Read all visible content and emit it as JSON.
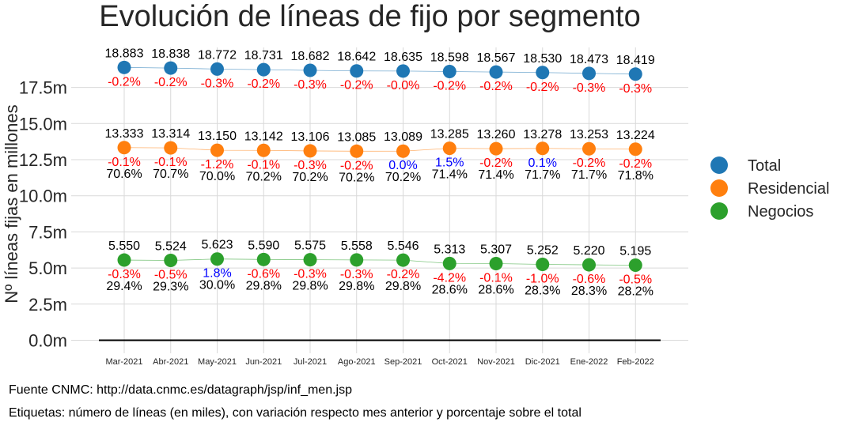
{
  "title": "Evolución de líneas de fijo por segmento",
  "footer": {
    "source": "Fuente CNMC: http://data.cnmc.es/datagraph/jsp/inf_men.jsp",
    "note": "Etiquetas: número de líneas (en miles), con variación respecto mes anterior y porcentaje sobre el total"
  },
  "colors": {
    "up": "#0000ff",
    "down": "#ff0000",
    "text": "#000000",
    "grid": "#d9d9d9"
  },
  "chart_data": {
    "type": "scatter",
    "title": "Evolución de líneas de fijo por segmento",
    "ylabel": "Nº líneas fijas en millones",
    "xlabel": "",
    "categories": [
      "Mar-2021",
      "Abr-2021",
      "May-2021",
      "Jun-2021",
      "Jul-2021",
      "Ago-2021",
      "Sep-2021",
      "Oct-2021",
      "Nov-2021",
      "Dic-2021",
      "Ene-2022",
      "Feb-2022"
    ],
    "ylim": [
      -0.8,
      19.5
    ],
    "yticks": [
      0.0,
      2.5,
      5.0,
      7.5,
      10.0,
      12.5,
      15.0,
      17.5
    ],
    "ytick_labels": [
      "0.0m",
      "2.5m",
      "5.0m",
      "7.5m",
      "10.0m",
      "12.5m",
      "15.0m",
      "17.5m"
    ],
    "grid": true,
    "legend_position": "right",
    "series": [
      {
        "name": "Total",
        "color": "#1f77b4",
        "values": [
          18.883,
          18.838,
          18.772,
          18.731,
          18.682,
          18.642,
          18.635,
          18.598,
          18.567,
          18.53,
          18.473,
          18.419
        ],
        "value_labels": [
          "18.883",
          "18.838",
          "18.772",
          "18.731",
          "18.682",
          "18.642",
          "18.635",
          "18.598",
          "18.567",
          "18.530",
          "18.473",
          "18.419"
        ],
        "change_labels": [
          "-0.2%",
          "-0.2%",
          "-0.3%",
          "-0.2%",
          "-0.3%",
          "-0.2%",
          "-0.0%",
          "-0.2%",
          "-0.2%",
          "-0.2%",
          "-0.3%",
          "-0.3%"
        ],
        "change_up": [
          false,
          false,
          false,
          false,
          false,
          false,
          false,
          false,
          false,
          false,
          false,
          false
        ],
        "share_labels": []
      },
      {
        "name": "Residencial",
        "color": "#ff7f0e",
        "values": [
          13.333,
          13.314,
          13.15,
          13.142,
          13.106,
          13.085,
          13.089,
          13.285,
          13.26,
          13.278,
          13.253,
          13.224
        ],
        "value_labels": [
          "13.333",
          "13.314",
          "13.150",
          "13.142",
          "13.106",
          "13.085",
          "13.089",
          "13.285",
          "13.260",
          "13.278",
          "13.253",
          "13.224"
        ],
        "change_labels": [
          "-0.1%",
          "-0.1%",
          "-1.2%",
          "-0.1%",
          "-0.3%",
          "-0.2%",
          "0.0%",
          "1.5%",
          "-0.2%",
          "0.1%",
          "-0.2%",
          "-0.2%"
        ],
        "change_up": [
          false,
          false,
          false,
          false,
          false,
          false,
          true,
          true,
          false,
          true,
          false,
          false
        ],
        "share_labels": [
          "70.6%",
          "70.7%",
          "70.0%",
          "70.2%",
          "70.2%",
          "70.2%",
          "70.2%",
          "71.4%",
          "71.4%",
          "71.7%",
          "71.7%",
          "71.8%"
        ]
      },
      {
        "name": "Negocios",
        "color": "#2ca02c",
        "values": [
          5.55,
          5.524,
          5.623,
          5.59,
          5.575,
          5.558,
          5.546,
          5.313,
          5.307,
          5.252,
          5.22,
          5.195
        ],
        "value_labels": [
          "5.550",
          "5.524",
          "5.623",
          "5.590",
          "5.575",
          "5.558",
          "5.546",
          "5.313",
          "5.307",
          "5.252",
          "5.220",
          "5.195"
        ],
        "change_labels": [
          "-0.3%",
          "-0.5%",
          "1.8%",
          "-0.6%",
          "-0.3%",
          "-0.3%",
          "-0.2%",
          "-4.2%",
          "-0.1%",
          "-1.0%",
          "-0.6%",
          "-0.5%"
        ],
        "change_up": [
          false,
          false,
          true,
          false,
          false,
          false,
          false,
          false,
          false,
          false,
          false,
          false
        ],
        "share_labels": [
          "29.4%",
          "29.3%",
          "30.0%",
          "29.8%",
          "29.8%",
          "29.8%",
          "29.8%",
          "28.6%",
          "28.6%",
          "28.3%",
          "28.3%",
          "28.2%"
        ]
      }
    ]
  }
}
